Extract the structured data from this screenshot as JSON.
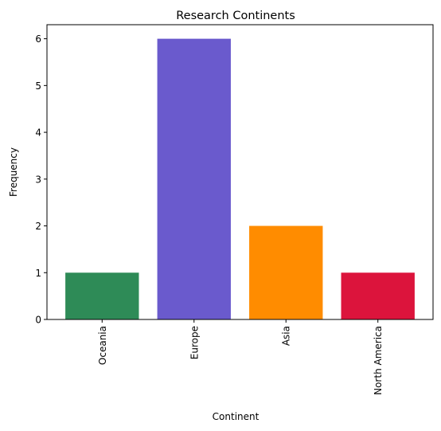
{
  "chart_data": {
    "type": "bar",
    "title": "Research Continents",
    "xlabel": "Continent",
    "ylabel": "Frequency",
    "categories": [
      "Oceania",
      "Europe",
      "Asia",
      "North America"
    ],
    "values": [
      1,
      6,
      2,
      1
    ],
    "bar_colors": [
      "#2e8b57",
      "#6a5acd",
      "#ff8c00",
      "#dc143c"
    ],
    "ylim": [
      0,
      6.3
    ],
    "yticks": [
      "0",
      "1",
      "2",
      "3",
      "4",
      "5",
      "6"
    ],
    "grid": false,
    "legend": "none"
  }
}
